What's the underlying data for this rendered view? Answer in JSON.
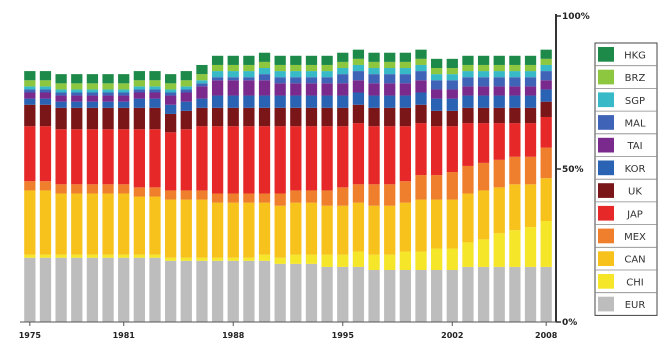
{
  "chart_data": {
    "type": "bar",
    "stacked": true,
    "x": [
      1975,
      1976,
      1977,
      1978,
      1979,
      1980,
      1981,
      1982,
      1983,
      1984,
      1985,
      1986,
      1987,
      1988,
      1989,
      1990,
      1991,
      1992,
      1993,
      1994,
      1995,
      1996,
      1997,
      1998,
      1999,
      2000,
      2001,
      2002,
      2003,
      2004,
      2005,
      2006,
      2007,
      2008
    ],
    "xtick_labels": [
      "1975",
      "1981",
      "1988",
      "1995",
      "2002",
      "2008"
    ],
    "xtick_years": [
      1975,
      1981,
      1988,
      1995,
      2002,
      2008
    ],
    "ytick_labels": [
      "0%",
      "50%",
      "100%"
    ],
    "ylim": [
      0,
      100
    ],
    "legend_position": "right",
    "series": [
      {
        "name": "EUR",
        "color": "#bdbdbd",
        "values": [
          21,
          21,
          21,
          21,
          21,
          21,
          21,
          21,
          21,
          20,
          20,
          20,
          20,
          20,
          20,
          20,
          19,
          19,
          19,
          18,
          18,
          18,
          17,
          17,
          17,
          17,
          17,
          17,
          18,
          18,
          18,
          18,
          18,
          18
        ]
      },
      {
        "name": "CHI",
        "color": "#f5e629",
        "values": [
          1,
          1,
          1,
          1,
          1,
          1,
          1,
          1,
          1,
          1,
          1,
          1,
          1,
          1,
          1,
          2,
          2,
          3,
          3,
          4,
          4,
          5,
          5,
          5,
          6,
          6,
          7,
          7,
          8,
          9,
          11,
          12,
          13,
          15
        ]
      },
      {
        "name": "CAN",
        "color": "#f7c21b",
        "values": [
          21,
          21,
          20,
          20,
          20,
          20,
          20,
          19,
          19,
          19,
          19,
          19,
          18,
          18,
          18,
          17,
          17,
          17,
          17,
          16,
          16,
          16,
          16,
          16,
          16,
          17,
          16,
          16,
          16,
          16,
          15,
          15,
          14,
          14
        ]
      },
      {
        "name": "MEX",
        "color": "#ef7f2c",
        "values": [
          3,
          3,
          3,
          3,
          3,
          3,
          3,
          3,
          3,
          3,
          3,
          3,
          3,
          3,
          3,
          3,
          4,
          4,
          4,
          5,
          6,
          6,
          7,
          7,
          7,
          8,
          8,
          9,
          9,
          9,
          9,
          9,
          9,
          10
        ]
      },
      {
        "name": "JAP",
        "color": "#e62828",
        "values": [
          18,
          18,
          18,
          18,
          18,
          18,
          18,
          19,
          19,
          19,
          20,
          21,
          22,
          22,
          22,
          22,
          22,
          21,
          21,
          21,
          20,
          20,
          19,
          19,
          18,
          17,
          16,
          15,
          14,
          13,
          12,
          11,
          11,
          10
        ]
      },
      {
        "name": "UK",
        "color": "#7a1518",
        "values": [
          7,
          7,
          7,
          7,
          7,
          7,
          7,
          7,
          7,
          6,
          6,
          6,
          6,
          6,
          6,
          6,
          6,
          6,
          6,
          6,
          6,
          6,
          6,
          6,
          6,
          6,
          5,
          5,
          5,
          5,
          5,
          5,
          5,
          5
        ]
      },
      {
        "name": "KOR",
        "color": "#2a63b4",
        "values": [
          2,
          2,
          2,
          2,
          2,
          2,
          2,
          3,
          3,
          3,
          3,
          3,
          4,
          4,
          4,
          4,
          4,
          4,
          4,
          4,
          4,
          4,
          4,
          4,
          4,
          4,
          4,
          4,
          4,
          4,
          4,
          4,
          4,
          4
        ]
      },
      {
        "name": "TAI",
        "color": "#7a2a8c",
        "values": [
          2,
          2,
          2,
          2,
          2,
          2,
          2,
          2,
          2,
          3,
          3,
          4,
          5,
          5,
          5,
          5,
          4,
          4,
          4,
          4,
          4,
          4,
          4,
          4,
          4,
          4,
          3,
          3,
          3,
          3,
          3,
          3,
          3,
          3
        ]
      },
      {
        "name": "MAL",
        "color": "#3f63b6",
        "values": [
          1,
          1,
          1,
          1,
          1,
          1,
          1,
          1,
          1,
          1,
          1,
          1,
          1,
          1,
          1,
          2,
          2,
          2,
          2,
          2,
          3,
          3,
          3,
          3,
          3,
          3,
          3,
          3,
          3,
          3,
          3,
          3,
          3,
          3
        ]
      },
      {
        "name": "SGP",
        "color": "#37b9c7",
        "values": [
          1,
          1,
          1,
          1,
          1,
          1,
          1,
          1,
          1,
          1,
          1,
          1,
          2,
          2,
          2,
          2,
          2,
          2,
          2,
          2,
          2,
          2,
          2,
          2,
          2,
          2,
          2,
          2,
          2,
          2,
          2,
          2,
          2,
          2
        ]
      },
      {
        "name": "BRZ",
        "color": "#8dc63f",
        "values": [
          2,
          2,
          2,
          2,
          2,
          2,
          2,
          2,
          2,
          2,
          2,
          2,
          2,
          2,
          2,
          2,
          2,
          2,
          2,
          2,
          2,
          2,
          2,
          2,
          2,
          2,
          2,
          2,
          2,
          2,
          2,
          2,
          2,
          2
        ]
      },
      {
        "name": "HKG",
        "color": "#1e8a49",
        "values": [
          3,
          3,
          3,
          3,
          3,
          3,
          3,
          3,
          3,
          3,
          3,
          3,
          3,
          3,
          3,
          3,
          3,
          3,
          3,
          3,
          3,
          3,
          3,
          3,
          3,
          3,
          3,
          3,
          3,
          3,
          3,
          3,
          3,
          3
        ]
      }
    ]
  }
}
